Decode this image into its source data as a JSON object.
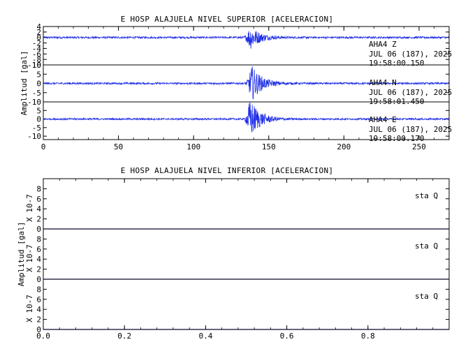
{
  "chart_data": [
    {
      "type": "line",
      "title": "E HOSP ALAJUELA NIVEL SUPERIOR [ACELERACION]",
      "ylabel": "Amplitud [gal]",
      "xlim": [
        0,
        270
      ],
      "xticks": [
        0,
        50,
        100,
        150,
        200,
        250
      ],
      "trace_color": "#1f2ee6",
      "panels": [
        {
          "station": "AHA4",
          "component": "Z",
          "date": "JUL 06 (187), 2025",
          "time": "19:58:00.150",
          "ylim": [
            -10,
            4
          ],
          "yticks": [
            4,
            2,
            0,
            -2,
            -4,
            -6,
            -8,
            -10
          ],
          "ytick_labels": [
            "4",
            "2",
            "0",
            "-2",
            "-4",
            "-6",
            "-8",
            "-10"
          ],
          "onset_s": 134,
          "peak_s": 138,
          "peak_abs": 4,
          "noise_abs": 0.35
        },
        {
          "station": "AHA4",
          "component": "N",
          "date": "JUL 06 (187), 2025",
          "time": "19:58:01.450",
          "ylim": [
            -10,
            10
          ],
          "yticks": [
            10,
            5,
            0,
            -5,
            -10
          ],
          "ytick_labels": [
            "10",
            "5",
            "0",
            "-5",
            "-10"
          ],
          "onset_s": 134,
          "peak_s": 139,
          "peak_abs": 9,
          "noise_abs": 0.5
        },
        {
          "station": "AHA4",
          "component": "E",
          "date": "JUL 06 (187), 2025",
          "time": "19:58:00.170",
          "ylim": [
            -12,
            10
          ],
          "yticks": [
            10,
            5,
            0,
            -5,
            -10
          ],
          "ytick_labels": [
            "",
            "5",
            "0",
            "-5",
            "-10"
          ],
          "onset_s": 134,
          "peak_s": 138,
          "peak_abs": 11,
          "noise_abs": 0.5
        }
      ]
    },
    {
      "type": "line",
      "title": "E HOSP ALAJUELA NIVEL INFERIOR [ACELERACION]",
      "ylabel": "Amplitud [gal]",
      "scale_label": "X 10-7",
      "xlim": [
        0,
        1
      ],
      "xticks": [
        0,
        0.2,
        0.4,
        0.6,
        0.8
      ],
      "xtick_labels": [
        "0.0",
        "0.2",
        "0.4",
        "0.6",
        "0.8"
      ],
      "trace_color": "#1f2ee6",
      "panels": [
        {
          "label": "sta  Q",
          "ylim": [
            0,
            10
          ],
          "yticks": [
            0,
            2,
            4,
            6,
            8
          ],
          "ytick_labels": [
            "0",
            "2",
            "4",
            "6",
            "8"
          ],
          "values": [
            0,
            0
          ]
        },
        {
          "label": "sta  Q",
          "ylim": [
            0,
            10
          ],
          "yticks": [
            0,
            2,
            4,
            6,
            8
          ],
          "ytick_labels": [
            "0",
            "2",
            "4",
            "6",
            "8"
          ],
          "values": [
            0,
            0
          ]
        },
        {
          "label": "sta  Q",
          "ylim": [
            0,
            10
          ],
          "yticks": [
            0,
            2,
            4,
            6,
            8
          ],
          "ytick_labels": [
            "0",
            "2",
            "4",
            "6",
            "8"
          ],
          "values": [
            0,
            0
          ]
        }
      ]
    }
  ]
}
